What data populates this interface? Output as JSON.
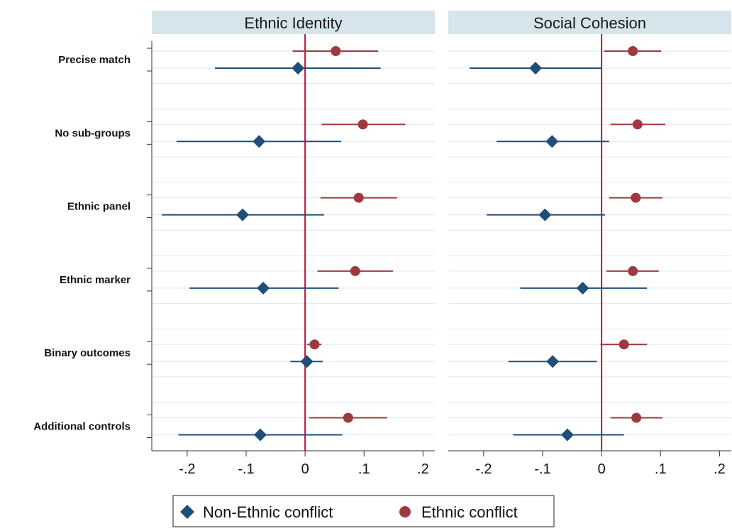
{
  "chart_data": {
    "type": "scatter",
    "subtype": "coefficient-plot-with-confidence-intervals",
    "panels": [
      {
        "title": "Ethnic Identity",
        "series": [
          {
            "name": "Non-Ethnic conflict",
            "marker": "diamond",
            "color": "#1f4e79",
            "points": [
              {
                "category": "Precise match",
                "estimate": -0.012,
                "ci": [
                  -0.153,
                  0.128
                ]
              },
              {
                "category": "No sub-groups",
                "estimate": -0.078,
                "ci": [
                  -0.218,
                  0.061
                ]
              },
              {
                "category": "Ethnic panel",
                "estimate": -0.106,
                "ci": [
                  -0.243,
                  0.032
                ]
              },
              {
                "category": "Ethnic marker",
                "estimate": -0.071,
                "ci": [
                  -0.196,
                  0.057
                ]
              },
              {
                "category": "Binary outcomes",
                "estimate": 0.003,
                "ci": [
                  -0.025,
                  0.03
                ]
              },
              {
                "category": "Additional controls",
                "estimate": -0.076,
                "ci": [
                  -0.215,
                  0.063
                ]
              }
            ]
          },
          {
            "name": "Ethnic conflict",
            "marker": "circle",
            "color": "#9e3a3f",
            "points": [
              {
                "category": "Precise match",
                "estimate": 0.052,
                "ci": [
                  -0.021,
                  0.124
                ]
              },
              {
                "category": "No sub-groups",
                "estimate": 0.098,
                "ci": [
                  0.028,
                  0.17
                ]
              },
              {
                "category": "Ethnic panel",
                "estimate": 0.091,
                "ci": [
                  0.026,
                  0.156
                ]
              },
              {
                "category": "Ethnic marker",
                "estimate": 0.085,
                "ci": [
                  0.021,
                  0.149
                ]
              },
              {
                "category": "Binary outcomes",
                "estimate": 0.016,
                "ci": [
                  0.003,
                  0.028
                ]
              },
              {
                "category": "Additional controls",
                "estimate": 0.073,
                "ci": [
                  0.007,
                  0.139
                ]
              }
            ]
          }
        ]
      },
      {
        "title": "Social Cohesion",
        "series": [
          {
            "name": "Non-Ethnic conflict",
            "marker": "diamond",
            "color": "#1f4e79",
            "points": [
              {
                "category": "Precise match",
                "estimate": -0.112,
                "ci": [
                  -0.224,
                  0.0
                ]
              },
              {
                "category": "No sub-groups",
                "estimate": -0.084,
                "ci": [
                  -0.178,
                  0.013
                ]
              },
              {
                "category": "Ethnic panel",
                "estimate": -0.096,
                "ci": [
                  -0.195,
                  0.006
                ]
              },
              {
                "category": "Ethnic marker",
                "estimate": -0.032,
                "ci": [
                  -0.138,
                  0.077
                ]
              },
              {
                "category": "Binary outcomes",
                "estimate": -0.083,
                "ci": [
                  -0.158,
                  -0.008
                ]
              },
              {
                "category": "Additional controls",
                "estimate": -0.058,
                "ci": [
                  -0.15,
                  0.038
                ]
              }
            ]
          },
          {
            "name": "Ethnic conflict",
            "marker": "circle",
            "color": "#9e3a3f",
            "points": [
              {
                "category": "Precise match",
                "estimate": 0.053,
                "ci": [
                  0.004,
                  0.101
                ]
              },
              {
                "category": "No sub-groups",
                "estimate": 0.061,
                "ci": [
                  0.015,
                  0.108
                ]
              },
              {
                "category": "Ethnic panel",
                "estimate": 0.058,
                "ci": [
                  0.013,
                  0.103
                ]
              },
              {
                "category": "Ethnic marker",
                "estimate": 0.053,
                "ci": [
                  0.008,
                  0.097
                ]
              },
              {
                "category": "Binary outcomes",
                "estimate": 0.038,
                "ci": [
                  -0.002,
                  0.077
                ]
              },
              {
                "category": "Additional controls",
                "estimate": 0.059,
                "ci": [
                  0.015,
                  0.103
                ]
              }
            ]
          }
        ]
      }
    ],
    "categories": [
      "Precise match",
      "No sub-groups",
      "Ethnic panel",
      "Ethnic marker",
      "Binary outcomes",
      "Additional controls"
    ],
    "xlim": [
      -0.26,
      0.22
    ],
    "xticks": [
      -0.2,
      -0.1,
      0,
      0.1,
      0.2
    ],
    "xtick_labels": [
      "-.2",
      "-.1",
      "0",
      ".1",
      ".2"
    ],
    "reference_line": {
      "x": 0,
      "color": "#c8102e"
    },
    "grid": true,
    "legend": {
      "placement": "bottom-center",
      "entries": [
        {
          "label": "Non-Ethnic conflict",
          "marker": "diamond",
          "color": "#1f4e79"
        },
        {
          "label": "Ethnic conflict",
          "marker": "circle",
          "color": "#9e3a3f"
        }
      ]
    },
    "colors": {
      "strip_bg": "#d6e4ec",
      "grid": "#e4ecf1",
      "axis": "#333333"
    }
  }
}
